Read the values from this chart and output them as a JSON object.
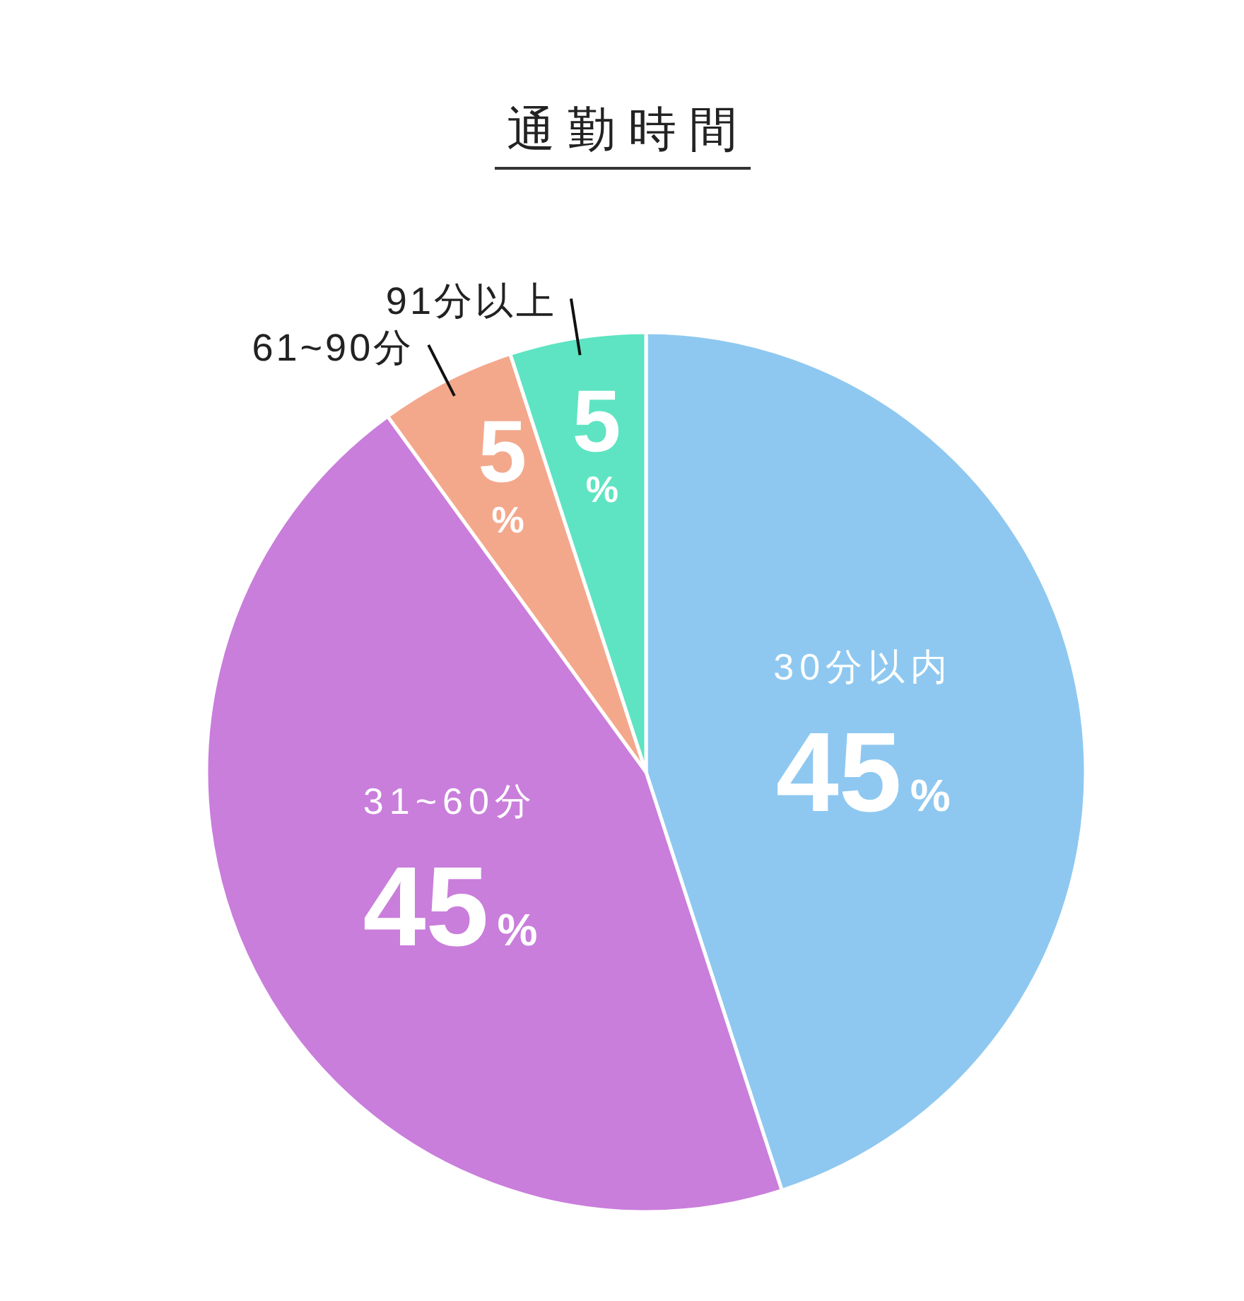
{
  "chart_data": {
    "type": "pie",
    "title": "通勤時間",
    "categories": [
      "30分以内",
      "31~60分",
      "61~90分",
      "91分以上"
    ],
    "values": [
      45,
      45,
      5,
      5
    ],
    "colors": [
      "#8ec8f0",
      "#c97edb",
      "#f3a88c",
      "#5ee4c2"
    ],
    "value_labels": [
      "45%",
      "45%",
      "5%",
      "5%"
    ]
  }
}
